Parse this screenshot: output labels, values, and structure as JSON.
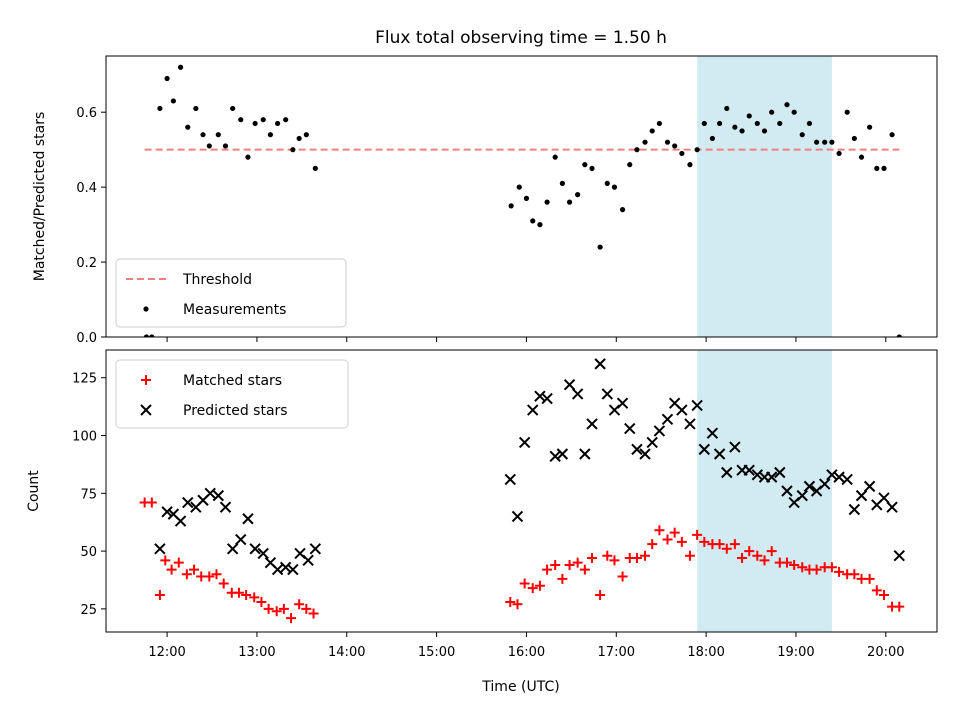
{
  "chart_data": {
    "type": "scatter",
    "title": "Flux total observing time = 1.50 h",
    "xlabel": "Time (UTC)",
    "x_ticks": [
      12,
      13,
      14,
      15,
      16,
      17,
      18,
      19,
      20
    ],
    "x_tick_labels": [
      "12:00",
      "13:00",
      "14:00",
      "15:00",
      "16:00",
      "17:00",
      "18:00",
      "19:00",
      "20:00"
    ],
    "xlim": [
      11.32,
      20.57
    ],
    "highlight_span": [
      17.9,
      19.4
    ],
    "colors": {
      "threshold": "#f08080",
      "measurements": "#000000",
      "matched": "#ff0000",
      "predicted": "#000000",
      "span": "#add8e6"
    },
    "panels": [
      {
        "ylabel": "Matched/Predicted stars",
        "ylim": [
          0,
          0.75
        ],
        "y_ticks": [
          0,
          0.2,
          0.4,
          0.6
        ],
        "y_tick_labels": [
          "0.0",
          "0.2",
          "0.4",
          "0.6"
        ],
        "legend": {
          "placement": "lower-left",
          "entries": [
            "Threshold",
            "Measurements"
          ]
        },
        "threshold": {
          "name": "Threshold",
          "y": 0.5,
          "x_range": [
            11.75,
            20.15
          ]
        },
        "series": [
          {
            "name": "Measurements",
            "marker": "dot",
            "points": [
              [
                11.77,
                0.0
              ],
              [
                11.83,
                0.0
              ],
              [
                11.92,
                0.61
              ],
              [
                12.0,
                0.69
              ],
              [
                12.07,
                0.63
              ],
              [
                12.15,
                0.72
              ],
              [
                12.23,
                0.56
              ],
              [
                12.32,
                0.61
              ],
              [
                12.4,
                0.54
              ],
              [
                12.47,
                0.51
              ],
              [
                12.57,
                0.54
              ],
              [
                12.65,
                0.51
              ],
              [
                12.73,
                0.61
              ],
              [
                12.82,
                0.58
              ],
              [
                12.9,
                0.48
              ],
              [
                12.98,
                0.57
              ],
              [
                13.07,
                0.58
              ],
              [
                13.15,
                0.54
              ],
              [
                13.23,
                0.57
              ],
              [
                13.32,
                0.58
              ],
              [
                13.4,
                0.5
              ],
              [
                13.47,
                0.53
              ],
              [
                13.55,
                0.54
              ],
              [
                13.65,
                0.45
              ],
              [
                15.83,
                0.35
              ],
              [
                15.92,
                0.4
              ],
              [
                16.0,
                0.37
              ],
              [
                16.07,
                0.31
              ],
              [
                16.15,
                0.3
              ],
              [
                16.23,
                0.36
              ],
              [
                16.32,
                0.48
              ],
              [
                16.4,
                0.41
              ],
              [
                16.48,
                0.36
              ],
              [
                16.57,
                0.38
              ],
              [
                16.65,
                0.46
              ],
              [
                16.73,
                0.45
              ],
              [
                16.82,
                0.24
              ],
              [
                16.9,
                0.41
              ],
              [
                16.98,
                0.4
              ],
              [
                17.07,
                0.34
              ],
              [
                17.15,
                0.46
              ],
              [
                17.23,
                0.5
              ],
              [
                17.32,
                0.52
              ],
              [
                17.4,
                0.55
              ],
              [
                17.48,
                0.57
              ],
              [
                17.57,
                0.52
              ],
              [
                17.65,
                0.51
              ],
              [
                17.73,
                0.49
              ],
              [
                17.82,
                0.46
              ],
              [
                17.9,
                0.5
              ],
              [
                17.98,
                0.57
              ],
              [
                18.07,
                0.53
              ],
              [
                18.15,
                0.57
              ],
              [
                18.23,
                0.61
              ],
              [
                18.32,
                0.56
              ],
              [
                18.4,
                0.55
              ],
              [
                18.48,
                0.59
              ],
              [
                18.57,
                0.57
              ],
              [
                18.65,
                0.55
              ],
              [
                18.73,
                0.6
              ],
              [
                18.82,
                0.57
              ],
              [
                18.9,
                0.62
              ],
              [
                18.98,
                0.6
              ],
              [
                19.07,
                0.54
              ],
              [
                19.15,
                0.57
              ],
              [
                19.23,
                0.52
              ],
              [
                19.32,
                0.52
              ],
              [
                19.4,
                0.52
              ],
              [
                19.48,
                0.49
              ],
              [
                19.57,
                0.6
              ],
              [
                19.65,
                0.53
              ],
              [
                19.73,
                0.48
              ],
              [
                19.82,
                0.56
              ],
              [
                19.9,
                0.45
              ],
              [
                19.98,
                0.45
              ],
              [
                20.07,
                0.54
              ],
              [
                20.15,
                0.0
              ]
            ]
          }
        ]
      },
      {
        "ylabel": "Count",
        "ylim": [
          15,
          137
        ],
        "y_ticks": [
          25,
          50,
          75,
          100,
          125
        ],
        "y_tick_labels": [
          "25",
          "50",
          "75",
          "100",
          "125"
        ],
        "legend": {
          "placement": "upper-left",
          "entries": [
            "Matched stars",
            "Predicted stars"
          ]
        },
        "series": [
          {
            "name": "Matched stars",
            "marker": "plus",
            "points": [
              [
                11.75,
                71
              ],
              [
                11.83,
                71
              ],
              [
                11.92,
                31
              ],
              [
                11.98,
                46
              ],
              [
                12.05,
                42
              ],
              [
                12.13,
                45
              ],
              [
                12.22,
                40
              ],
              [
                12.3,
                42
              ],
              [
                12.38,
                39
              ],
              [
                12.47,
                39
              ],
              [
                12.55,
                40
              ],
              [
                12.63,
                36
              ],
              [
                12.72,
                32
              ],
              [
                12.8,
                32
              ],
              [
                12.88,
                31
              ],
              [
                12.97,
                30
              ],
              [
                13.05,
                28
              ],
              [
                13.13,
                25
              ],
              [
                13.22,
                24
              ],
              [
                13.3,
                25
              ],
              [
                13.38,
                21
              ],
              [
                13.47,
                27
              ],
              [
                13.55,
                25
              ],
              [
                13.63,
                23
              ],
              [
                15.82,
                28
              ],
              [
                15.9,
                27
              ],
              [
                15.98,
                36
              ],
              [
                16.07,
                34
              ],
              [
                16.15,
                35
              ],
              [
                16.23,
                42
              ],
              [
                16.32,
                44
              ],
              [
                16.4,
                38
              ],
              [
                16.48,
                44
              ],
              [
                16.57,
                45
              ],
              [
                16.65,
                42
              ],
              [
                16.73,
                47
              ],
              [
                16.82,
                31
              ],
              [
                16.9,
                48
              ],
              [
                16.98,
                46
              ],
              [
                17.07,
                39
              ],
              [
                17.15,
                47
              ],
              [
                17.23,
                47
              ],
              [
                17.32,
                48
              ],
              [
                17.4,
                53
              ],
              [
                17.48,
                59
              ],
              [
                17.57,
                55
              ],
              [
                17.65,
                58
              ],
              [
                17.73,
                54
              ],
              [
                17.82,
                48
              ],
              [
                17.9,
                57
              ],
              [
                17.98,
                54
              ],
              [
                18.07,
                53
              ],
              [
                18.15,
                53
              ],
              [
                18.23,
                51
              ],
              [
                18.32,
                53
              ],
              [
                18.4,
                47
              ],
              [
                18.48,
                50
              ],
              [
                18.57,
                48
              ],
              [
                18.65,
                46
              ],
              [
                18.73,
                50
              ],
              [
                18.82,
                45
              ],
              [
                18.9,
                45
              ],
              [
                18.98,
                44
              ],
              [
                19.07,
                43
              ],
              [
                19.15,
                42
              ],
              [
                19.23,
                42
              ],
              [
                19.32,
                43
              ],
              [
                19.4,
                43
              ],
              [
                19.48,
                41
              ],
              [
                19.57,
                40
              ],
              [
                19.65,
                40
              ],
              [
                19.73,
                38
              ],
              [
                19.82,
                38
              ],
              [
                19.9,
                33
              ],
              [
                19.98,
                31
              ],
              [
                20.07,
                26
              ],
              [
                20.15,
                26
              ]
            ]
          },
          {
            "name": "Predicted stars",
            "marker": "x",
            "points": [
              [
                11.92,
                51
              ],
              [
                12.0,
                67
              ],
              [
                12.07,
                66
              ],
              [
                12.15,
                63
              ],
              [
                12.23,
                71
              ],
              [
                12.32,
                69
              ],
              [
                12.4,
                72
              ],
              [
                12.48,
                75
              ],
              [
                12.57,
                74
              ],
              [
                12.65,
                69
              ],
              [
                12.73,
                51
              ],
              [
                12.82,
                55
              ],
              [
                12.9,
                64
              ],
              [
                12.98,
                51
              ],
              [
                13.07,
                49
              ],
              [
                13.15,
                45
              ],
              [
                13.23,
                42
              ],
              [
                13.32,
                43
              ],
              [
                13.4,
                42
              ],
              [
                13.48,
                49
              ],
              [
                13.57,
                46
              ],
              [
                13.65,
                51
              ],
              [
                15.82,
                81
              ],
              [
                15.9,
                65
              ],
              [
                15.98,
                97
              ],
              [
                16.07,
                111
              ],
              [
                16.15,
                117
              ],
              [
                16.23,
                116
              ],
              [
                16.32,
                91
              ],
              [
                16.4,
                92
              ],
              [
                16.48,
                122
              ],
              [
                16.57,
                118
              ],
              [
                16.65,
                92
              ],
              [
                16.73,
                105
              ],
              [
                16.82,
                131
              ],
              [
                16.9,
                118
              ],
              [
                16.98,
                111
              ],
              [
                17.07,
                114
              ],
              [
                17.15,
                103
              ],
              [
                17.23,
                94
              ],
              [
                17.32,
                92
              ],
              [
                17.4,
                97
              ],
              [
                17.48,
                102
              ],
              [
                17.57,
                107
              ],
              [
                17.65,
                114
              ],
              [
                17.73,
                111
              ],
              [
                17.82,
                105
              ],
              [
                17.9,
                113
              ],
              [
                17.98,
                94
              ],
              [
                18.07,
                101
              ],
              [
                18.15,
                92
              ],
              [
                18.23,
                84
              ],
              [
                18.32,
                95
              ],
              [
                18.4,
                85
              ],
              [
                18.48,
                85
              ],
              [
                18.57,
                83
              ],
              [
                18.65,
                82
              ],
              [
                18.73,
                82
              ],
              [
                18.82,
                84
              ],
              [
                18.9,
                76
              ],
              [
                18.98,
                71
              ],
              [
                19.07,
                74
              ],
              [
                19.15,
                78
              ],
              [
                19.23,
                76
              ],
              [
                19.32,
                79
              ],
              [
                19.4,
                83
              ],
              [
                19.48,
                82
              ],
              [
                19.57,
                81
              ],
              [
                19.65,
                68
              ],
              [
                19.73,
                74
              ],
              [
                19.82,
                78
              ],
              [
                19.9,
                70
              ],
              [
                19.98,
                73
              ],
              [
                20.07,
                69
              ],
              [
                20.15,
                48
              ]
            ]
          }
        ]
      }
    ]
  }
}
